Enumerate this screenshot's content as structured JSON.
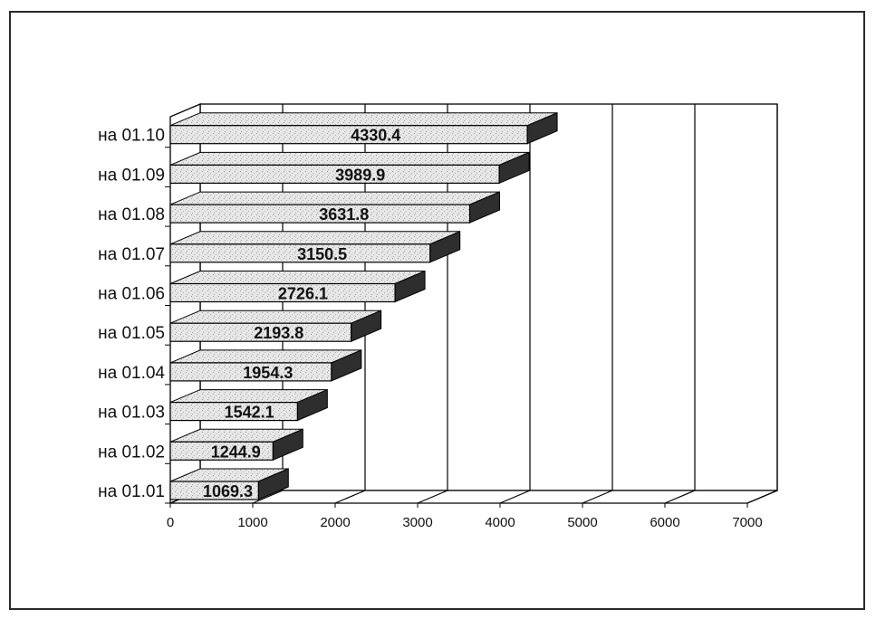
{
  "chart_data": {
    "type": "bar",
    "orientation": "horizontal",
    "style": "3d",
    "categories": [
      "на 01.01",
      "на 01.02",
      "на 01.03",
      "на 01.04",
      "на 01.05",
      "на 01.06",
      "на 01.07",
      "на 01.08",
      "на 01.09",
      "на 01.10"
    ],
    "series": [
      {
        "values": [
          1069.3,
          1244.9,
          1542.1,
          1954.3,
          2193.8,
          2726.1,
          3150.5,
          3631.8,
          3989.9,
          4330.4
        ]
      }
    ],
    "data_labels": [
      "1069.3",
      "1244.9",
      "1542.1",
      "1954.3",
      "2193.8",
      "2726.1",
      "3150.5",
      "3631.8",
      "3989.9",
      "4330.4"
    ],
    "xlim": [
      0,
      7000
    ],
    "x_ticks": [
      "0",
      "1000",
      "2000",
      "3000",
      "4000",
      "5000",
      "6000",
      "7000"
    ],
    "title": "",
    "xlabel": "",
    "ylabel": "",
    "grid": true,
    "legend": "none",
    "colors": {
      "bar_front": "#dcdcdc",
      "bar_top": "#ececec",
      "bar_side": "#2e2e2e",
      "floor": "#8c8c8c",
      "gridline": "#000000"
    }
  }
}
